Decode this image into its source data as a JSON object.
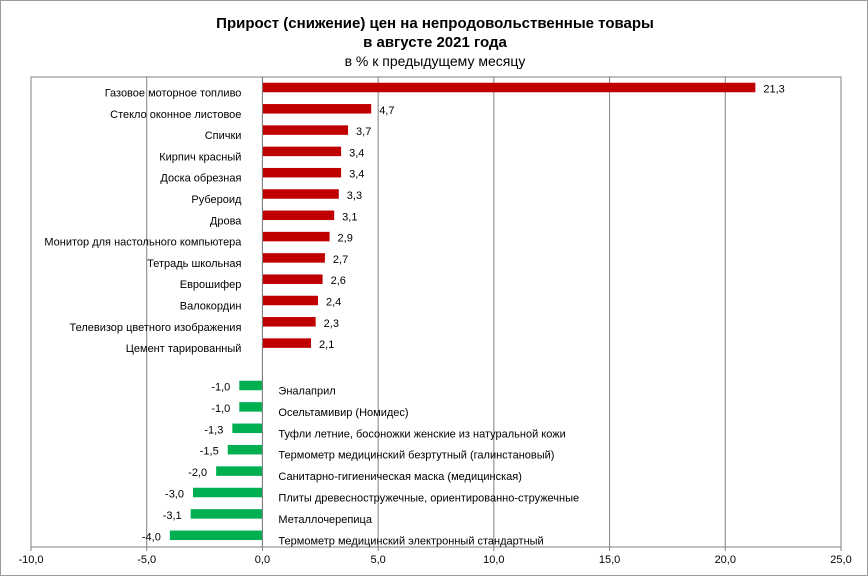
{
  "chart_data": {
    "type": "bar",
    "orientation": "horizontal",
    "title": "Прирост (снижение) цен на непродовольственные товары",
    "title_line2": "в августе 2021 года",
    "subtitle": "в % к предыдущему месяцу",
    "xlim": [
      -10,
      25
    ],
    "xticks": [
      -10,
      -5,
      0,
      5,
      10,
      15,
      20,
      25
    ],
    "tick_labels": [
      "-10,0",
      "-5,0",
      "0,0",
      "5,0",
      "10,0",
      "15,0",
      "20,0",
      "25,0"
    ],
    "grid": "vertical",
    "colors": {
      "increase": "#c00000",
      "decrease": "#00b050",
      "grid": "#808080"
    },
    "increases": [
      {
        "label": "Газовое моторное топливо",
        "value": 21.3,
        "value_label": "21,3"
      },
      {
        "label": "Стекло оконное листовое",
        "value": 4.7,
        "value_label": "4,7"
      },
      {
        "label": "Спички",
        "value": 3.7,
        "value_label": "3,7"
      },
      {
        "label": "Кирпич красный",
        "value": 3.4,
        "value_label": "3,4"
      },
      {
        "label": "Доска обрезная",
        "value": 3.4,
        "value_label": "3,4"
      },
      {
        "label": "Рубероид",
        "value": 3.3,
        "value_label": "3,3"
      },
      {
        "label": "Дрова",
        "value": 3.1,
        "value_label": "3,1"
      },
      {
        "label": "Монитор для настольного компьютера",
        "value": 2.9,
        "value_label": "2,9"
      },
      {
        "label": "Тетрадь школьная",
        "value": 2.7,
        "value_label": "2,7"
      },
      {
        "label": "Еврошифер",
        "value": 2.6,
        "value_label": "2,6"
      },
      {
        "label": "Валокордин",
        "value": 2.4,
        "value_label": "2,4"
      },
      {
        "label": "Телевизор цветного изображения",
        "value": 2.3,
        "value_label": "2,3"
      },
      {
        "label": "Цемент тарированный",
        "value": 2.1,
        "value_label": "2,1"
      }
    ],
    "decreases": [
      {
        "label": "Эналаприл",
        "value": -1.0,
        "value_label": "-1,0"
      },
      {
        "label": "Осельтамивир (Номидес)",
        "value": -1.0,
        "value_label": "-1,0"
      },
      {
        "label": "Туфли летние, босоножки женские из натуральной кожи",
        "value": -1.3,
        "value_label": "-1,3"
      },
      {
        "label": "Термометр медицинский безртутный (галинстановый)",
        "value": -1.5,
        "value_label": "-1,5"
      },
      {
        "label": "Санитарно-гигиеническая маска (медицинская)",
        "value": -2.0,
        "value_label": "-2,0"
      },
      {
        "label": "Плиты древесностружечные, ориентированно-стружечные",
        "value": -3.0,
        "value_label": "-3,0"
      },
      {
        "label": "Металлочерепица",
        "value": -3.1,
        "value_label": "-3,1"
      },
      {
        "label": "Термометр медицинский электронный стандартный",
        "value": -4.0,
        "value_label": "-4,0"
      }
    ]
  }
}
